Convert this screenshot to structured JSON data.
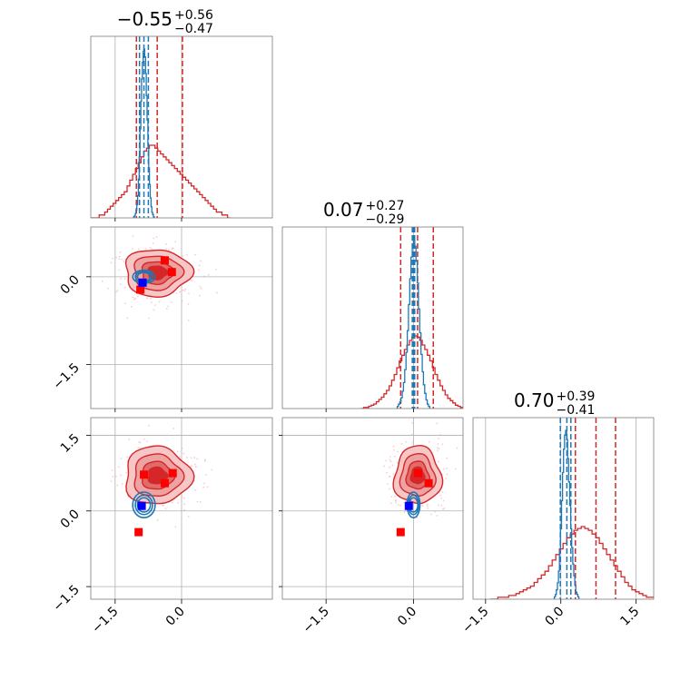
{
  "chart_data": {
    "type": "corner",
    "titles": [
      {
        "median": "0.55",
        "sign": "−",
        "plus": "+0.56",
        "minus": "−0.47"
      },
      {
        "median": "0.07",
        "sign": "",
        "plus": "+0.27",
        "minus": "−0.29"
      },
      {
        "median": "0.70",
        "sign": "",
        "plus": "+0.39",
        "minus": "−0.41"
      }
    ],
    "axis_ranges": [
      [
        -2.05,
        2.05
      ],
      [
        -2.25,
        0.85
      ],
      [
        -1.75,
        1.85
      ]
    ],
    "ticks": [
      {
        "values": [
          -1.5,
          0.0
        ],
        "labels": [
          "−1.5",
          "0.0"
        ]
      },
      {
        "values": [
          -1.5,
          0.0
        ],
        "labels": [
          "−1.5",
          "0.0"
        ]
      },
      {
        "values": [
          -1.5,
          0.0,
          1.5
        ],
        "labels": [
          "−1.5",
          "0.0",
          "1.5"
        ]
      }
    ],
    "grid": true,
    "series": [
      {
        "color": "#d62728",
        "quantiles": [
          [
            -1.02,
            -0.55,
            0.02
          ],
          [
            -0.22,
            0.07,
            0.34
          ],
          [
            0.29,
            0.7,
            1.09
          ]
        ],
        "histograms": [
          {
            "edges": [
              -2.05,
              1.1
            ],
            "counts": [
              0,
              0,
              0,
              1,
              1,
              2,
              3,
              4,
              5,
              6,
              7,
              8,
              9,
              11,
              13,
              15,
              17,
              19,
              21,
              23,
              24,
              25,
              25,
              24,
              23,
              22,
              21,
              20,
              19,
              18,
              17,
              16,
              15,
              14,
              13,
              12,
              11,
              10,
              9,
              8,
              7,
              6,
              5,
              4,
              3,
              2,
              2,
              1,
              1,
              0
            ]
          },
          {
            "edges": [
              -0.9,
              0.85
            ],
            "counts": [
              0,
              1,
              1,
              2,
              3,
              4,
              6,
              8,
              10,
              13,
              16,
              20,
              25,
              30,
              36,
              42,
              47,
              52,
              56,
              60,
              63,
              64,
              63,
              60,
              56,
              52,
              47,
              42,
              36,
              30,
              25,
              20,
              16,
              12,
              9,
              7,
              5,
              3,
              2,
              1
            ]
          },
          {
            "edges": [
              -1.4,
              1.85
            ],
            "counts": [
              0,
              0,
              1,
              1,
              1,
              2,
              2,
              3,
              4,
              5,
              6,
              7,
              9,
              11,
              13,
              15,
              18,
              21,
              24,
              27,
              30,
              33,
              35,
              37,
              38,
              39,
              38,
              37,
              35,
              33,
              30,
              27,
              24,
              21,
              18,
              15,
              12,
              9,
              7,
              5,
              4,
              3,
              2,
              1,
              1
            ]
          }
        ],
        "markers": [
          {
            "pair": [
              0,
              1
            ],
            "points": [
              [
                -0.93,
                -0.22
              ],
              [
                -0.38,
                0.28
              ],
              [
                -0.22,
                0.08
              ]
            ]
          },
          {
            "pair": [
              0,
              2
            ],
            "points": [
              [
                -0.97,
                -0.42
              ],
              [
                -0.85,
                0.72
              ],
              [
                -0.38,
                0.55
              ],
              [
                -0.2,
                0.75
              ]
            ]
          },
          {
            "pair": [
              1,
              2
            ],
            "points": [
              [
                -0.22,
                -0.42
              ],
              [
                0.08,
                0.75
              ],
              [
                0.26,
                0.55
              ]
            ]
          }
        ]
      },
      {
        "color": "#1f77b4",
        "quantiles": [
          [
            -0.95,
            -0.85,
            -0.75
          ],
          [
            -0.02,
            0.0,
            0.02
          ],
          [
            -0.01,
            0.12,
            0.2
          ]
        ],
        "histograms": [
          {
            "edges": [
              -1.1,
              -0.6
            ],
            "counts": [
              0,
              1,
              2,
              4,
              7,
              12,
              20,
              35,
              55,
              80,
              105,
              125,
              140,
              150,
              152,
              145,
              130,
              110,
              88,
              65,
              45,
              30,
              18,
              10,
              5,
              3,
              1,
              0
            ]
          },
          {
            "edges": [
              -0.3,
              0.3
            ],
            "counts": [
              0,
              1,
              2,
              3,
              5,
              8,
              12,
              18,
              26,
              36,
              48,
              60,
              70,
              76,
              78,
              75,
              68,
              58,
              46,
              35,
              25,
              17,
              11,
              7,
              4,
              2,
              1,
              0
            ]
          },
          {
            "edges": [
              -0.15,
              0.38
            ],
            "counts": [
              0,
              1,
              2,
              4,
              7,
              12,
              20,
              30,
              42,
              54,
              64,
              70,
              72,
              68,
              60,
              50,
              40,
              30,
              22,
              15,
              10,
              6,
              3,
              2,
              1,
              0
            ]
          }
        ],
        "markers": [
          {
            "pair": [
              0,
              1
            ],
            "points": [
              [
                -0.88,
                -0.1
              ]
            ]
          },
          {
            "pair": [
              0,
              2
            ],
            "points": [
              [
                -0.9,
                0.1
              ]
            ]
          },
          {
            "pair": [
              1,
              2
            ],
            "points": [
              [
                -0.08,
                0.1
              ]
            ]
          }
        ]
      }
    ]
  }
}
